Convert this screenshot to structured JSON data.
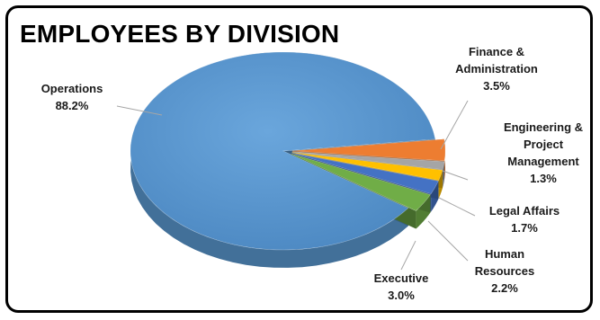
{
  "chart_data": {
    "type": "pie",
    "title": "EMPLOYEES BY DIVISION",
    "slices": [
      {
        "label": [
          "Finance &",
          "Administration"
        ],
        "value_label": "3.5%",
        "value": 3.5,
        "color": "#ED7D31"
      },
      {
        "label": [
          "Engineering &",
          "Project",
          "Management"
        ],
        "value_label": "1.3%",
        "value": 1.3,
        "color": "#A5A5A5"
      },
      {
        "label": [
          "Legal Affairs"
        ],
        "value_label": "1.7%",
        "value": 1.7,
        "color": "#FFC000"
      },
      {
        "label": [
          "Human",
          "Resources"
        ],
        "value_label": "2.2%",
        "value": 2.2,
        "color": "#4472C4"
      },
      {
        "label": [
          "Executive"
        ],
        "value_label": "3.0%",
        "value": 3.0,
        "color": "#70AD47"
      },
      {
        "label": [
          "Operations"
        ],
        "value_label": "88.2%",
        "value": 88.2,
        "color": "#5B9BD5"
      }
    ]
  }
}
